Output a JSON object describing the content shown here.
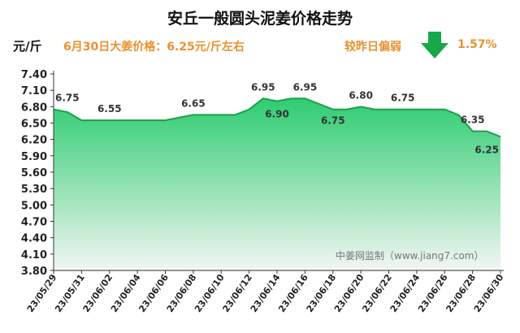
{
  "header": {
    "title": "安丘一般圆头泥姜价格走势",
    "unit": "元/斤",
    "price_note": "6月30日大姜价格：6.25元/斤左右",
    "compare_label": "较昨日偏弱",
    "change_pct": "1.57%",
    "arrow_icon": "down-arrow-icon",
    "arrow_color": "#17a84a"
  },
  "watermark": "中姜网监制（www.jiang7.com）",
  "chart_data": {
    "type": "area",
    "title": "安丘一般圆头泥姜价格走势",
    "ylabel": "元/斤",
    "ylim": [
      3.8,
      7.4
    ],
    "yticks": [
      "3.80",
      "4.10",
      "4.40",
      "4.70",
      "5.00",
      "5.30",
      "5.60",
      "5.90",
      "6.20",
      "6.50",
      "6.80",
      "7.10",
      "7.40"
    ],
    "xtick_labels": [
      "23/05/29",
      "23/05/31",
      "23/06/02",
      "23/06/04",
      "23/06/06",
      "23/06/08",
      "23/06/10",
      "23/06/12",
      "23/06/14",
      "23/06/16",
      "23/06/18",
      "23/06/20",
      "23/06/22",
      "23/06/24",
      "23/06/26",
      "23/06/28",
      "23/06/30"
    ],
    "series": [
      {
        "x": [
          "23/05/29",
          "23/05/30",
          "23/05/31",
          "23/06/01",
          "23/06/02",
          "23/06/03",
          "23/06/04",
          "23/06/05",
          "23/06/06",
          "23/06/07",
          "23/06/08",
          "23/06/09",
          "23/06/10",
          "23/06/11",
          "23/06/12",
          "23/06/13",
          "23/06/14",
          "23/06/15",
          "23/06/16",
          "23/06/17",
          "23/06/18",
          "23/06/19",
          "23/06/20",
          "23/06/21",
          "23/06/22",
          "23/06/23",
          "23/06/24",
          "23/06/25",
          "23/06/26",
          "23/06/27",
          "23/06/28",
          "23/06/29",
          "23/06/30"
        ],
        "values": [
          6.75,
          6.7,
          6.55,
          6.55,
          6.55,
          6.55,
          6.55,
          6.55,
          6.55,
          6.6,
          6.65,
          6.65,
          6.65,
          6.65,
          6.75,
          6.95,
          6.9,
          6.95,
          6.95,
          6.85,
          6.75,
          6.75,
          6.8,
          6.75,
          6.75,
          6.75,
          6.75,
          6.75,
          6.75,
          6.65,
          6.35,
          6.35,
          6.25
        ]
      }
    ],
    "data_labels": [
      {
        "x": "23/05/29",
        "text": "6.75"
      },
      {
        "x": "23/06/02",
        "text": "6.55"
      },
      {
        "x": "23/06/08",
        "text": "6.65"
      },
      {
        "x": "23/06/13",
        "text": "6.95"
      },
      {
        "x": "23/06/14",
        "text": "6.90"
      },
      {
        "x": "23/06/16",
        "text": "6.95"
      },
      {
        "x": "23/06/18",
        "text": "6.75"
      },
      {
        "x": "23/06/20",
        "text": "6.80"
      },
      {
        "x": "23/06/23",
        "text": "6.75"
      },
      {
        "x": "23/06/28",
        "text": "6.35"
      },
      {
        "x": "23/06/30",
        "text": "6.25"
      }
    ],
    "fill_color_top": "#2ecc71",
    "fill_color_bottom": "#f2f6f2",
    "line_color": "#1e9e4a",
    "grid": false,
    "legend": "none"
  }
}
